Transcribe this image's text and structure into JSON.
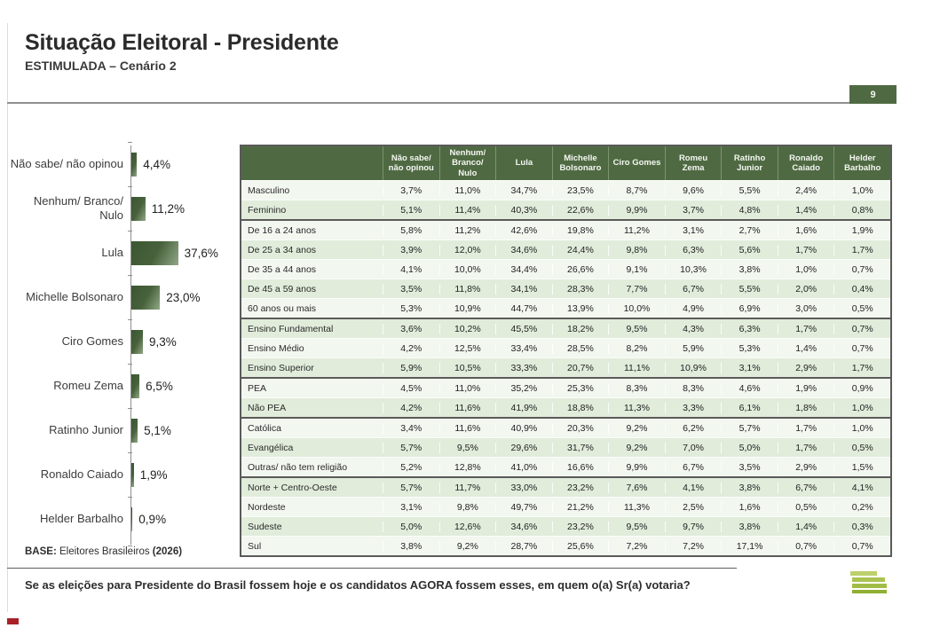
{
  "slide": {
    "title": "Situação Eleitoral - Presidente",
    "subtitle": "ESTIMULADA – Cenário 2",
    "page_number": "9",
    "base_label": "BASE:",
    "base_text": " Eleitores Brasileiros ",
    "base_year": "(2026)",
    "question": "Se as eleições para Presidente do Brasil fossem hoje e os candidatos AGORA fossem esses, em quem o(a) Sr(a) votaria?"
  },
  "colors": {
    "header_green": "#4f6a42",
    "row_tint": "#e1ecdb",
    "row_plain": "#f2f7f0",
    "bar_gradient_dark": "#3a5632",
    "bar_gradient_light": "#92a787",
    "logo_green": "#a2bd45",
    "corner_red": "#a92128"
  },
  "chart_data": {
    "type": "bar",
    "orientation": "horizontal",
    "title": "Situação Eleitoral - Presidente — Estimulada, Cenário 2",
    "xlabel": "",
    "ylabel": "",
    "xlim": [
      0,
      40
    ],
    "grid": false,
    "categories": [
      "Não sabe/ não opinou",
      "Nenhum/ Branco/ Nulo",
      "Lula",
      "Michelle Bolsonaro",
      "Ciro Gomes",
      "Romeu Zema",
      "Ratinho Junior",
      "Ronaldo Caiado",
      "Helder Barbalho"
    ],
    "values": [
      4.4,
      11.2,
      37.6,
      23.0,
      9.3,
      6.5,
      5.1,
      1.9,
      0.9
    ],
    "labels": [
      "4,4%",
      "11,2%",
      "37,6%",
      "23,0%",
      "9,3%",
      "6,5%",
      "5,1%",
      "1,9%",
      "0,9%"
    ]
  },
  "table": {
    "columns": [
      "Não sabe/ não opinou",
      "Nenhum/ Branco/ Nulo",
      "Lula",
      "Michelle Bolsonaro",
      "Ciro Gomes",
      "Romeu Zema",
      "Ratinho Junior",
      "Ronaldo Caiado",
      "Helder Barbalho"
    ],
    "groups": [
      {
        "name": "sexo",
        "rows": [
          {
            "label": "Masculino",
            "values": [
              "3,7%",
              "11,0%",
              "34,7%",
              "23,5%",
              "8,7%",
              "9,6%",
              "5,5%",
              "2,4%",
              "1,0%"
            ]
          },
          {
            "label": "Feminino",
            "values": [
              "5,1%",
              "11,4%",
              "40,3%",
              "22,6%",
              "9,9%",
              "3,7%",
              "4,8%",
              "1,4%",
              "0,8%"
            ]
          }
        ]
      },
      {
        "name": "idade",
        "rows": [
          {
            "label": "De 16 a 24 anos",
            "values": [
              "5,8%",
              "11,2%",
              "42,6%",
              "19,8%",
              "11,2%",
              "3,1%",
              "2,7%",
              "1,6%",
              "1,9%"
            ]
          },
          {
            "label": "De 25 a 34 anos",
            "values": [
              "3,9%",
              "12,0%",
              "34,6%",
              "24,4%",
              "9,8%",
              "6,3%",
              "5,6%",
              "1,7%",
              "1,7%"
            ]
          },
          {
            "label": "De 35 a 44 anos",
            "values": [
              "4,1%",
              "10,0%",
              "34,4%",
              "26,6%",
              "9,1%",
              "10,3%",
              "3,8%",
              "1,0%",
              "0,7%"
            ]
          },
          {
            "label": "De 45 a 59 anos",
            "values": [
              "3,5%",
              "11,8%",
              "34,1%",
              "28,3%",
              "7,7%",
              "6,7%",
              "5,5%",
              "2,0%",
              "0,4%"
            ]
          },
          {
            "label": "60 anos ou mais",
            "values": [
              "5,3%",
              "10,9%",
              "44,7%",
              "13,9%",
              "10,0%",
              "4,9%",
              "6,9%",
              "3,0%",
              "0,5%"
            ]
          }
        ]
      },
      {
        "name": "escolaridade",
        "rows": [
          {
            "label": "Ensino Fundamental",
            "values": [
              "3,6%",
              "10,2%",
              "45,5%",
              "18,2%",
              "9,5%",
              "4,3%",
              "6,3%",
              "1,7%",
              "0,7%"
            ]
          },
          {
            "label": "Ensino Médio",
            "values": [
              "4,2%",
              "12,5%",
              "33,4%",
              "28,5%",
              "8,2%",
              "5,9%",
              "5,3%",
              "1,4%",
              "0,7%"
            ]
          },
          {
            "label": "Ensino Superior",
            "values": [
              "5,9%",
              "10,5%",
              "33,3%",
              "20,7%",
              "11,1%",
              "10,9%",
              "3,1%",
              "2,9%",
              "1,7%"
            ]
          }
        ]
      },
      {
        "name": "ocupacao",
        "rows": [
          {
            "label": "PEA",
            "values": [
              "4,5%",
              "11,0%",
              "35,2%",
              "25,3%",
              "8,3%",
              "8,3%",
              "4,6%",
              "1,9%",
              "0,9%"
            ]
          },
          {
            "label": "Não PEA",
            "values": [
              "4,2%",
              "11,6%",
              "41,9%",
              "18,8%",
              "11,3%",
              "3,3%",
              "6,1%",
              "1,8%",
              "1,0%"
            ]
          }
        ]
      },
      {
        "name": "religiao",
        "rows": [
          {
            "label": "Católica",
            "values": [
              "3,4%",
              "11,6%",
              "40,9%",
              "20,3%",
              "9,2%",
              "6,2%",
              "5,7%",
              "1,7%",
              "1,0%"
            ]
          },
          {
            "label": "Evangélica",
            "values": [
              "5,7%",
              "9,5%",
              "29,6%",
              "31,7%",
              "9,2%",
              "7,0%",
              "5,0%",
              "1,7%",
              "0,5%"
            ]
          },
          {
            "label": "Outras/ não tem religião",
            "values": [
              "5,2%",
              "12,8%",
              "41,0%",
              "16,6%",
              "9,9%",
              "6,7%",
              "3,5%",
              "2,9%",
              "1,5%"
            ]
          }
        ]
      },
      {
        "name": "regiao",
        "rows": [
          {
            "label": "Norte + Centro-Oeste",
            "values": [
              "5,7%",
              "11,7%",
              "33,0%",
              "23,2%",
              "7,6%",
              "4,1%",
              "3,8%",
              "6,7%",
              "4,1%"
            ]
          },
          {
            "label": "Nordeste",
            "values": [
              "3,1%",
              "9,8%",
              "49,7%",
              "21,2%",
              "11,3%",
              "2,5%",
              "1,6%",
              "0,5%",
              "0,2%"
            ]
          },
          {
            "label": "Sudeste",
            "values": [
              "5,0%",
              "12,6%",
              "34,6%",
              "23,2%",
              "9,5%",
              "9,7%",
              "3,8%",
              "1,4%",
              "0,3%"
            ]
          },
          {
            "label": "Sul",
            "values": [
              "3,8%",
              "9,2%",
              "28,7%",
              "25,6%",
              "7,2%",
              "7,2%",
              "17,1%",
              "0,7%",
              "0,7%"
            ]
          }
        ]
      }
    ]
  }
}
